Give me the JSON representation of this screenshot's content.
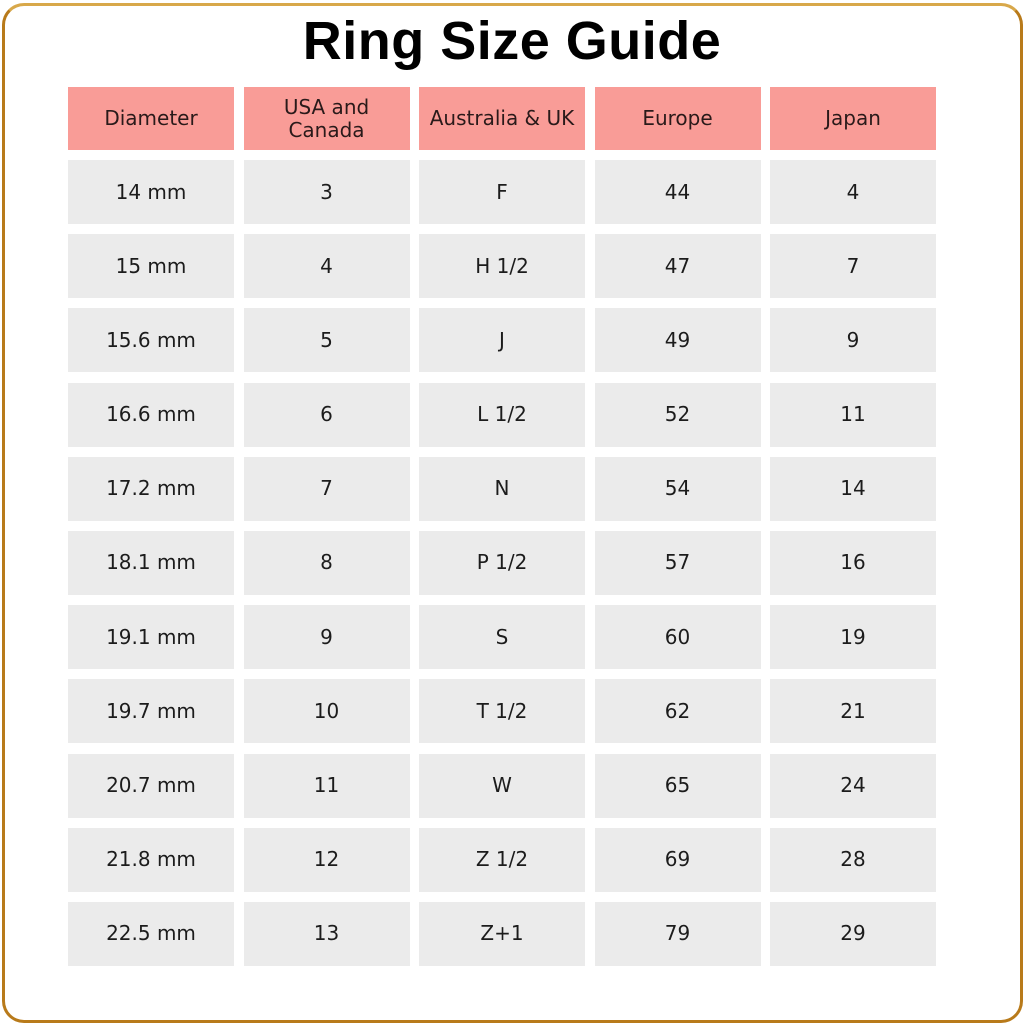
{
  "title": "Ring Size Guide",
  "colors": {
    "header": "#f99c97",
    "cell": "#ebebeb",
    "frame": "#b87a1a"
  },
  "columns": [
    "Diameter",
    "USA and Canada",
    "Australia & UK",
    "Europe",
    "Japan"
  ],
  "rows": [
    [
      "14 mm",
      "3",
      "F",
      "44",
      "4"
    ],
    [
      "15 mm",
      "4",
      "H 1/2",
      "47",
      "7"
    ],
    [
      "15.6 mm",
      "5",
      "J",
      "49",
      "9"
    ],
    [
      "16.6 mm",
      "6",
      "L 1/2",
      "52",
      "11"
    ],
    [
      "17.2 mm",
      "7",
      "N",
      "54",
      "14"
    ],
    [
      "18.1 mm",
      "8",
      "P 1/2",
      "57",
      "16"
    ],
    [
      "19.1 mm",
      "9",
      "S",
      "60",
      "19"
    ],
    [
      "19.7 mm",
      "10",
      "T 1/2",
      "62",
      "21"
    ],
    [
      "20.7 mm",
      "11",
      "W",
      "65",
      "24"
    ],
    [
      "21.8 mm",
      "12",
      "Z 1/2",
      "69",
      "28"
    ],
    [
      "22.5 mm",
      "13",
      "Z+1",
      "79",
      "29"
    ]
  ]
}
